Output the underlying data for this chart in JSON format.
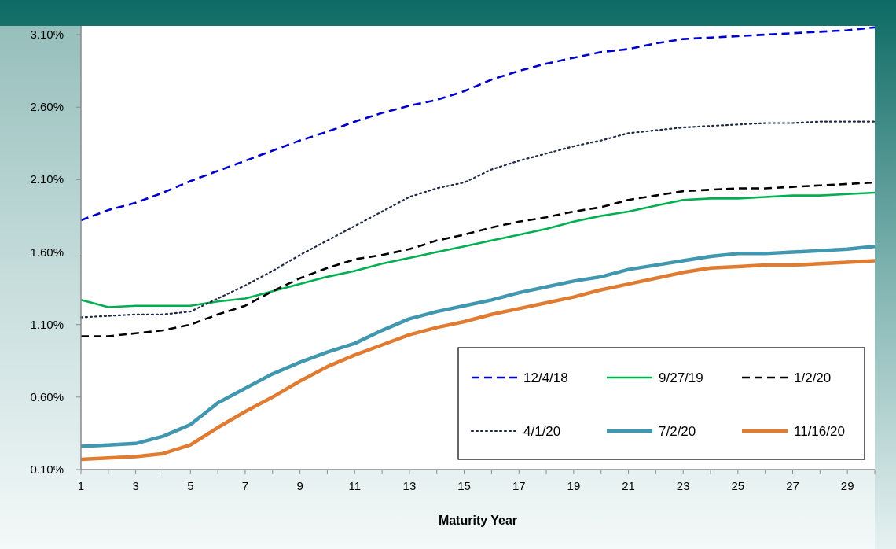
{
  "chart_data": {
    "type": "line",
    "xlabel": "Maturity Year",
    "xlim": [
      1,
      30
    ],
    "xticks": [
      1,
      {
        "value": 2,
        "label": null
      },
      3,
      {
        "value": 4,
        "label": null
      },
      5,
      {
        "value": 6,
        "label": null
      },
      7,
      {
        "value": 8,
        "label": null
      },
      9,
      {
        "value": 10,
        "label": null
      },
      11,
      {
        "value": 12,
        "label": null
      },
      13,
      {
        "value": 14,
        "label": null
      },
      15,
      {
        "value": 16,
        "label": null
      },
      17,
      {
        "value": 18,
        "label": null
      },
      19,
      {
        "value": 20,
        "label": null
      },
      21,
      {
        "value": 22,
        "label": null
      },
      23,
      {
        "value": 24,
        "label": null
      },
      25,
      {
        "value": 26,
        "label": null
      },
      27,
      {
        "value": 28,
        "label": null
      },
      29,
      {
        "value": 30,
        "label": null
      }
    ],
    "ylim": [
      0.1,
      3.16
    ],
    "yticks": [
      {
        "value": 0.1,
        "label": "0.10%"
      },
      {
        "value": 0.6,
        "label": "0.60%"
      },
      {
        "value": 1.1,
        "label": "1.10%"
      },
      {
        "value": 1.6,
        "label": "1.60%"
      },
      {
        "value": 2.1,
        "label": "2.10%"
      },
      {
        "value": 2.6,
        "label": "2.60%"
      },
      {
        "value": 3.1,
        "label": "3.10%"
      }
    ],
    "grid": false,
    "legend": "bottom right",
    "marker": "none",
    "x": [
      1,
      2,
      3,
      4,
      5,
      6,
      7,
      8,
      9,
      10,
      11,
      12,
      13,
      14,
      15,
      16,
      17,
      18,
      19,
      20,
      21,
      22,
      23,
      24,
      25,
      26,
      27,
      28,
      29,
      30
    ],
    "series": [
      {
        "name": "12/4/18",
        "color": "#0000cc",
        "line_style": "dashed",
        "values": [
          1.82,
          1.89,
          1.94,
          2.01,
          2.09,
          2.16,
          2.23,
          2.3,
          2.37,
          2.43,
          2.5,
          2.56,
          2.61,
          2.65,
          2.71,
          2.79,
          2.85,
          2.9,
          2.94,
          2.98,
          3.0,
          3.04,
          3.07,
          3.08,
          3.09,
          3.1,
          3.11,
          3.12,
          3.13,
          3.15
        ]
      },
      {
        "name": "9/27/19",
        "color": "#00b050",
        "line_style": "solid",
        "values": [
          1.27,
          1.22,
          1.23,
          1.23,
          1.23,
          1.26,
          1.28,
          1.33,
          1.38,
          1.43,
          1.47,
          1.52,
          1.56,
          1.6,
          1.64,
          1.68,
          1.72,
          1.76,
          1.81,
          1.85,
          1.88,
          1.92,
          1.96,
          1.97,
          1.97,
          1.98,
          1.99,
          1.99,
          2.0,
          2.01
        ]
      },
      {
        "name": "1/2/20",
        "color": "#000000",
        "line_style": "dashed",
        "values": [
          1.02,
          1.02,
          1.04,
          1.06,
          1.1,
          1.17,
          1.23,
          1.33,
          1.42,
          1.49,
          1.55,
          1.58,
          1.62,
          1.68,
          1.72,
          1.77,
          1.81,
          1.84,
          1.88,
          1.91,
          1.96,
          1.99,
          2.02,
          2.03,
          2.04,
          2.04,
          2.05,
          2.06,
          2.07,
          2.08
        ]
      },
      {
        "name": "4/1/20",
        "color": "#1f2a44",
        "line_style": "dotted",
        "values": [
          1.15,
          1.16,
          1.17,
          1.17,
          1.19,
          1.28,
          1.37,
          1.47,
          1.58,
          1.68,
          1.78,
          1.88,
          1.98,
          2.04,
          2.08,
          2.17,
          2.23,
          2.28,
          2.33,
          2.37,
          2.42,
          2.44,
          2.46,
          2.47,
          2.48,
          2.49,
          2.49,
          2.5,
          2.5,
          2.5
        ]
      },
      {
        "name": "7/2/20",
        "color": "#4297b0",
        "line_style": "solid",
        "values": [
          0.26,
          0.27,
          0.28,
          0.33,
          0.41,
          0.56,
          0.66,
          0.76,
          0.84,
          0.91,
          0.97,
          1.06,
          1.14,
          1.19,
          1.23,
          1.27,
          1.32,
          1.36,
          1.4,
          1.43,
          1.48,
          1.51,
          1.54,
          1.57,
          1.59,
          1.59,
          1.6,
          1.61,
          1.62,
          1.64
        ]
      },
      {
        "name": "11/16/20",
        "color": "#e07b32",
        "line_style": "solid",
        "values": [
          0.17,
          0.18,
          0.19,
          0.21,
          0.27,
          0.39,
          0.5,
          0.6,
          0.71,
          0.81,
          0.89,
          0.96,
          1.03,
          1.08,
          1.12,
          1.17,
          1.21,
          1.25,
          1.29,
          1.34,
          1.38,
          1.42,
          1.46,
          1.49,
          1.5,
          1.51,
          1.51,
          1.52,
          1.53,
          1.54
        ]
      }
    ]
  }
}
